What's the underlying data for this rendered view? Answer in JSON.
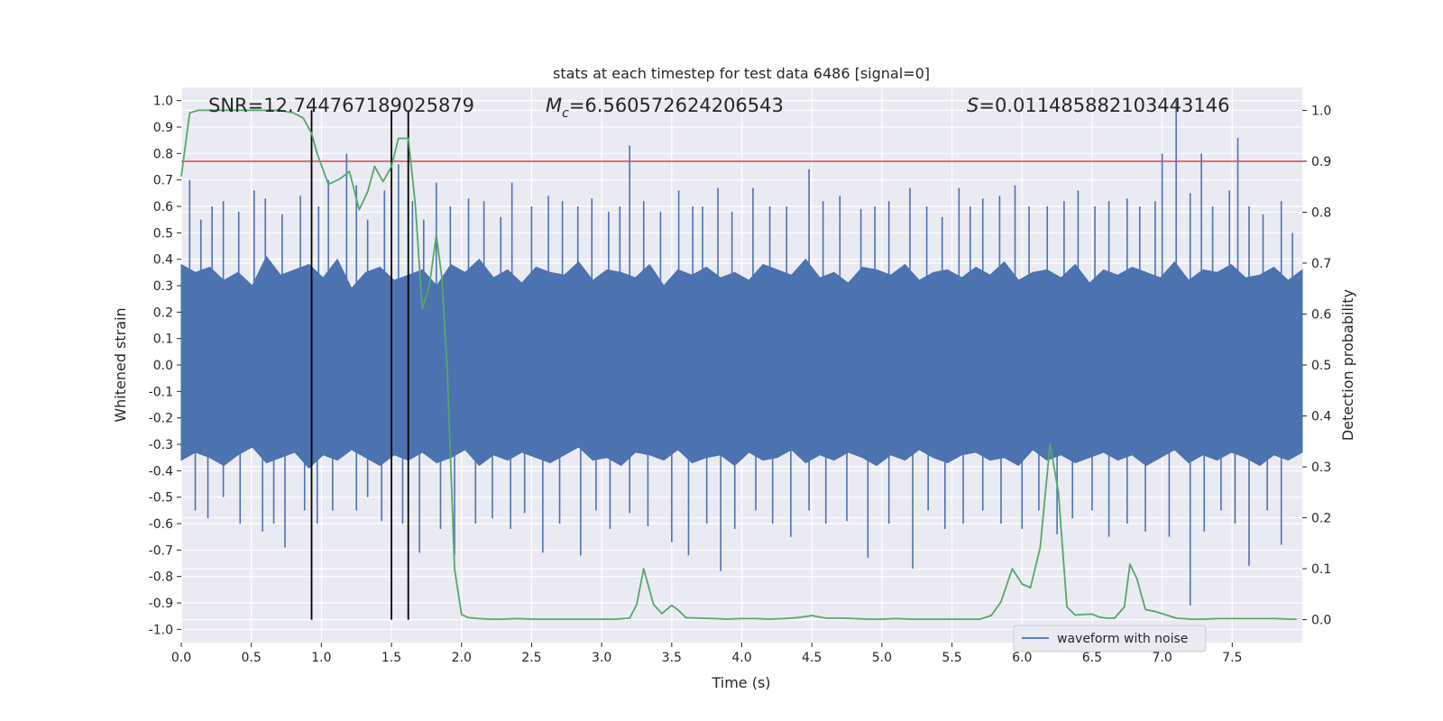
{
  "chart_data": {
    "type": "line",
    "title": "stats at each timestep for test data 6486 [signal=0]",
    "xlabel": "Time (s)",
    "ylabel": "Whitened strain",
    "ylabel_right": "Detection probability",
    "xlim": [
      0.0,
      8.0
    ],
    "ylim": [
      -1.05,
      1.05
    ],
    "ylim_right": [
      -0.045,
      1.045
    ],
    "grid": true,
    "xticks": [
      "0.0",
      "0.5",
      "1.0",
      "1.5",
      "2.0",
      "2.5",
      "3.0",
      "3.5",
      "4.0",
      "4.5",
      "5.0",
      "5.5",
      "6.0",
      "6.5",
      "7.0",
      "7.5"
    ],
    "yticks": [
      "1.0",
      "0.9",
      "0.8",
      "0.7",
      "0.6",
      "0.5",
      "0.4",
      "0.3",
      "0.2",
      "0.1",
      "0.0",
      "-0.1",
      "-0.2",
      "-0.3",
      "-0.4",
      "-0.5",
      "-0.6",
      "-0.7",
      "-0.8",
      "-0.9",
      "-1.0"
    ],
    "yticks_right": [
      "1.0",
      "0.9",
      "0.8",
      "0.7",
      "0.6",
      "0.5",
      "0.4",
      "0.3",
      "0.2",
      "0.1",
      "0.0"
    ],
    "annotations": {
      "snr": "SNR=12.744767189025879",
      "mc_symbol": "M",
      "mc_sub": "c",
      "mc_value": "=6.560572624206543",
      "s_symbol": "S",
      "s_value": "=0.011485882103443146"
    },
    "legend": {
      "location": "lower-right",
      "entries": [
        "waveform with noise"
      ]
    },
    "colors": {
      "waveform": "#4c72b0",
      "probability": "#55a868",
      "threshold": "#c44e52",
      "markers": "#000000",
      "background": "#eaeaf2"
    },
    "threshold_right": 0.9,
    "vertical_markers_x": [
      0.93,
      1.5,
      1.62
    ],
    "marker_ymax_right": 1.0,
    "marker_ymin_right": 0.0,
    "waveform": {
      "name": "waveform with noise",
      "envelope_top": [
        0.38,
        0.35,
        0.37,
        0.32,
        0.35,
        0.3,
        0.41,
        0.34,
        0.36,
        0.38,
        0.33,
        0.4,
        0.29,
        0.35,
        0.37,
        0.32,
        0.34,
        0.36,
        0.3,
        0.38,
        0.35,
        0.4,
        0.33,
        0.36,
        0.31,
        0.37,
        0.35,
        0.34,
        0.39,
        0.32,
        0.36,
        0.35,
        0.33,
        0.38,
        0.3,
        0.36,
        0.34,
        0.37,
        0.33,
        0.35,
        0.32,
        0.38,
        0.36,
        0.34,
        0.4,
        0.33,
        0.35,
        0.31,
        0.37,
        0.36,
        0.34,
        0.38,
        0.32,
        0.35,
        0.36,
        0.33,
        0.37,
        0.34,
        0.39,
        0.32,
        0.35,
        0.36,
        0.33,
        0.38,
        0.31,
        0.36,
        0.34,
        0.37,
        0.35,
        0.33,
        0.39,
        0.32,
        0.36,
        0.35,
        0.38,
        0.33,
        0.34,
        0.37,
        0.32,
        0.36
      ],
      "envelope_bottom": [
        -0.36,
        -0.33,
        -0.35,
        -0.38,
        -0.34,
        -0.31,
        -0.37,
        -0.35,
        -0.33,
        -0.39,
        -0.34,
        -0.36,
        -0.32,
        -0.35,
        -0.38,
        -0.34,
        -0.36,
        -0.33,
        -0.37,
        -0.35,
        -0.32,
        -0.38,
        -0.34,
        -0.36,
        -0.33,
        -0.35,
        -0.37,
        -0.34,
        -0.31,
        -0.36,
        -0.35,
        -0.38,
        -0.33,
        -0.34,
        -0.36,
        -0.32,
        -0.37,
        -0.35,
        -0.34,
        -0.38,
        -0.33,
        -0.36,
        -0.35,
        -0.32,
        -0.37,
        -0.34,
        -0.36,
        -0.33,
        -0.35,
        -0.38,
        -0.34,
        -0.36,
        -0.32,
        -0.35,
        -0.37,
        -0.34,
        -0.33,
        -0.36,
        -0.35,
        -0.38,
        -0.32,
        -0.36,
        -0.34,
        -0.37,
        -0.35,
        -0.33,
        -0.36,
        -0.34,
        -0.38,
        -0.35,
        -0.32,
        -0.37,
        -0.34,
        -0.36,
        -0.33,
        -0.35,
        -0.38,
        -0.34,
        -0.36,
        -0.33
      ],
      "spikes": [
        {
          "x": 0.06,
          "y": 0.7
        },
        {
          "x": 0.14,
          "y": 0.55
        },
        {
          "x": 0.22,
          "y": 0.6
        },
        {
          "x": 0.3,
          "y": 0.62
        },
        {
          "x": 0.41,
          "y": 0.58
        },
        {
          "x": 0.52,
          "y": 0.66
        },
        {
          "x": 0.6,
          "y": 0.63
        },
        {
          "x": 0.72,
          "y": 0.57
        },
        {
          "x": 0.85,
          "y": 0.64
        },
        {
          "x": 0.98,
          "y": 0.6
        },
        {
          "x": 1.05,
          "y": 0.7
        },
        {
          "x": 1.18,
          "y": 0.8
        },
        {
          "x": 1.25,
          "y": 0.68
        },
        {
          "x": 1.33,
          "y": 0.55
        },
        {
          "x": 1.45,
          "y": 0.66
        },
        {
          "x": 1.55,
          "y": 0.76
        },
        {
          "x": 1.65,
          "y": 0.62
        },
        {
          "x": 1.73,
          "y": 0.55
        },
        {
          "x": 1.82,
          "y": 0.69
        },
        {
          "x": 1.92,
          "y": 0.6
        },
        {
          "x": 2.05,
          "y": 0.63
        },
        {
          "x": 2.16,
          "y": 0.62
        },
        {
          "x": 2.28,
          "y": 0.56
        },
        {
          "x": 2.36,
          "y": 0.69
        },
        {
          "x": 2.5,
          "y": 0.6
        },
        {
          "x": 2.62,
          "y": 0.64
        },
        {
          "x": 2.72,
          "y": 0.62
        },
        {
          "x": 2.83,
          "y": 0.6
        },
        {
          "x": 2.93,
          "y": 0.63
        },
        {
          "x": 3.05,
          "y": 0.58
        },
        {
          "x": 3.13,
          "y": 0.6
        },
        {
          "x": 3.2,
          "y": 0.83
        },
        {
          "x": 3.3,
          "y": 0.62
        },
        {
          "x": 3.42,
          "y": 0.58
        },
        {
          "x": 3.55,
          "y": 0.66
        },
        {
          "x": 3.65,
          "y": 0.6
        },
        {
          "x": 3.72,
          "y": 0.6
        },
        {
          "x": 3.83,
          "y": 0.67
        },
        {
          "x": 3.93,
          "y": 0.58
        },
        {
          "x": 4.08,
          "y": 0.67
        },
        {
          "x": 4.2,
          "y": 0.6
        },
        {
          "x": 4.32,
          "y": 0.6
        },
        {
          "x": 4.48,
          "y": 0.74
        },
        {
          "x": 4.58,
          "y": 0.62
        },
        {
          "x": 4.7,
          "y": 0.64
        },
        {
          "x": 4.85,
          "y": 0.59
        },
        {
          "x": 4.95,
          "y": 0.6
        },
        {
          "x": 5.05,
          "y": 0.62
        },
        {
          "x": 5.2,
          "y": 0.67
        },
        {
          "x": 5.32,
          "y": 0.6
        },
        {
          "x": 5.43,
          "y": 0.56
        },
        {
          "x": 5.55,
          "y": 0.67
        },
        {
          "x": 5.63,
          "y": 0.6
        },
        {
          "x": 5.72,
          "y": 0.63
        },
        {
          "x": 5.84,
          "y": 0.64
        },
        {
          "x": 5.95,
          "y": 0.68
        },
        {
          "x": 6.05,
          "y": 0.6
        },
        {
          "x": 6.18,
          "y": 0.6
        },
        {
          "x": 6.3,
          "y": 0.62
        },
        {
          "x": 6.4,
          "y": 0.66
        },
        {
          "x": 6.52,
          "y": 0.6
        },
        {
          "x": 6.62,
          "y": 0.62
        },
        {
          "x": 6.75,
          "y": 0.63
        },
        {
          "x": 6.84,
          "y": 0.6
        },
        {
          "x": 6.95,
          "y": 0.62
        },
        {
          "x": 7.0,
          "y": 0.8
        },
        {
          "x": 7.1,
          "y": 1.0
        },
        {
          "x": 7.2,
          "y": 0.65
        },
        {
          "x": 7.28,
          "y": 0.8
        },
        {
          "x": 7.36,
          "y": 0.6
        },
        {
          "x": 7.48,
          "y": 0.66
        },
        {
          "x": 7.54,
          "y": 0.86
        },
        {
          "x": 7.62,
          "y": 0.6
        },
        {
          "x": 7.72,
          "y": 0.57
        },
        {
          "x": 7.85,
          "y": 0.62
        },
        {
          "x": 7.93,
          "y": 0.5
        },
        {
          "x": 0.1,
          "y": -0.55
        },
        {
          "x": 0.19,
          "y": -0.58
        },
        {
          "x": 0.3,
          "y": -0.5
        },
        {
          "x": 0.42,
          "y": -0.6
        },
        {
          "x": 0.58,
          "y": -0.63
        },
        {
          "x": 0.66,
          "y": -0.6
        },
        {
          "x": 0.74,
          "y": -0.69
        },
        {
          "x": 0.88,
          "y": -0.55
        },
        {
          "x": 0.97,
          "y": -0.6
        },
        {
          "x": 1.08,
          "y": -0.55
        },
        {
          "x": 1.25,
          "y": -0.55
        },
        {
          "x": 1.33,
          "y": -0.5
        },
        {
          "x": 1.43,
          "y": -0.59
        },
        {
          "x": 1.58,
          "y": -0.6
        },
        {
          "x": 1.7,
          "y": -0.71
        },
        {
          "x": 1.85,
          "y": -0.62
        },
        {
          "x": 1.95,
          "y": -0.72
        },
        {
          "x": 2.1,
          "y": -0.6
        },
        {
          "x": 2.22,
          "y": -0.58
        },
        {
          "x": 2.35,
          "y": -0.62
        },
        {
          "x": 2.45,
          "y": -0.56
        },
        {
          "x": 2.58,
          "y": -0.71
        },
        {
          "x": 2.7,
          "y": -0.6
        },
        {
          "x": 2.85,
          "y": -0.72
        },
        {
          "x": 2.96,
          "y": -0.55
        },
        {
          "x": 3.06,
          "y": -0.62
        },
        {
          "x": 3.2,
          "y": -0.56
        },
        {
          "x": 3.33,
          "y": -0.61
        },
        {
          "x": 3.5,
          "y": -0.67
        },
        {
          "x": 3.62,
          "y": -0.72
        },
        {
          "x": 3.75,
          "y": -0.6
        },
        {
          "x": 3.85,
          "y": -0.78
        },
        {
          "x": 3.95,
          "y": -0.62
        },
        {
          "x": 4.1,
          "y": -0.55
        },
        {
          "x": 4.22,
          "y": -0.6
        },
        {
          "x": 4.35,
          "y": -0.65
        },
        {
          "x": 4.48,
          "y": -0.55
        },
        {
          "x": 4.6,
          "y": -0.6
        },
        {
          "x": 4.75,
          "y": -0.59
        },
        {
          "x": 4.9,
          "y": -0.73
        },
        {
          "x": 5.05,
          "y": -0.6
        },
        {
          "x": 5.22,
          "y": -0.77
        },
        {
          "x": 5.33,
          "y": -0.55
        },
        {
          "x": 5.45,
          "y": -0.62
        },
        {
          "x": 5.58,
          "y": -0.6
        },
        {
          "x": 5.72,
          "y": -0.55
        },
        {
          "x": 5.85,
          "y": -0.6
        },
        {
          "x": 6.0,
          "y": -0.62
        },
        {
          "x": 6.12,
          "y": -0.55
        },
        {
          "x": 6.25,
          "y": -0.64
        },
        {
          "x": 6.36,
          "y": -0.58
        },
        {
          "x": 6.5,
          "y": -0.55
        },
        {
          "x": 6.62,
          "y": -0.65
        },
        {
          "x": 6.75,
          "y": -0.6
        },
        {
          "x": 6.88,
          "y": -0.63
        },
        {
          "x": 7.05,
          "y": -0.65
        },
        {
          "x": 7.2,
          "y": -0.91
        },
        {
          "x": 7.3,
          "y": -0.63
        },
        {
          "x": 7.42,
          "y": -0.55
        },
        {
          "x": 7.52,
          "y": -0.6
        },
        {
          "x": 7.62,
          "y": -0.76
        },
        {
          "x": 7.75,
          "y": -0.55
        },
        {
          "x": 7.85,
          "y": -0.68
        }
      ]
    },
    "probability": {
      "name": "detection probability",
      "x": [
        0.0,
        0.06,
        0.12,
        0.2,
        0.3,
        0.5,
        0.7,
        0.8,
        0.87,
        0.93,
        0.97,
        1.05,
        1.13,
        1.2,
        1.27,
        1.33,
        1.38,
        1.44,
        1.5,
        1.55,
        1.62,
        1.67,
        1.72,
        1.77,
        1.82,
        1.86,
        1.9,
        1.95,
        2.0,
        2.05,
        2.12,
        2.2,
        2.3,
        2.4,
        2.5,
        2.6,
        2.7,
        2.8,
        2.9,
        3.0,
        3.1,
        3.2,
        3.25,
        3.3,
        3.37,
        3.43,
        3.5,
        3.55,
        3.6,
        3.7,
        3.8,
        3.9,
        4.0,
        4.1,
        4.2,
        4.3,
        4.4,
        4.5,
        4.6,
        4.7,
        4.8,
        4.9,
        5.0,
        5.1,
        5.2,
        5.3,
        5.4,
        5.5,
        5.6,
        5.7,
        5.78,
        5.85,
        5.93,
        6.0,
        6.06,
        6.13,
        6.2,
        6.26,
        6.32,
        6.38,
        6.43,
        6.5,
        6.55,
        6.6,
        6.66,
        6.73,
        6.77,
        6.82,
        6.88,
        6.95,
        7.02,
        7.1,
        7.2,
        7.3,
        7.4,
        7.5,
        7.6,
        7.7,
        7.8,
        7.9,
        7.96
      ],
      "y": [
        0.87,
        0.995,
        1.0,
        1.0,
        1.0,
        1.0,
        1.0,
        0.995,
        0.985,
        0.955,
        0.915,
        0.855,
        0.865,
        0.88,
        0.805,
        0.84,
        0.89,
        0.86,
        0.89,
        0.945,
        0.945,
        0.815,
        0.61,
        0.655,
        0.755,
        0.67,
        0.48,
        0.1,
        0.01,
        0.004,
        0.002,
        0.001,
        0.001,
        0.002,
        0.001,
        0.001,
        0.001,
        0.001,
        0.001,
        0.001,
        0.001,
        0.003,
        0.03,
        0.1,
        0.03,
        0.012,
        0.028,
        0.018,
        0.004,
        0.003,
        0.002,
        0.001,
        0.002,
        0.002,
        0.001,
        0.002,
        0.004,
        0.008,
        0.003,
        0.003,
        0.002,
        0.001,
        0.001,
        0.002,
        0.001,
        0.001,
        0.001,
        0.001,
        0.001,
        0.001,
        0.008,
        0.035,
        0.1,
        0.07,
        0.063,
        0.142,
        0.345,
        0.25,
        0.025,
        0.009,
        0.01,
        0.011,
        0.005,
        0.003,
        0.003,
        0.025,
        0.109,
        0.08,
        0.02,
        0.016,
        0.01,
        0.003,
        0.001,
        0.001,
        0.002,
        0.002,
        0.002,
        0.002,
        0.002,
        0.001,
        0.001
      ]
    }
  }
}
